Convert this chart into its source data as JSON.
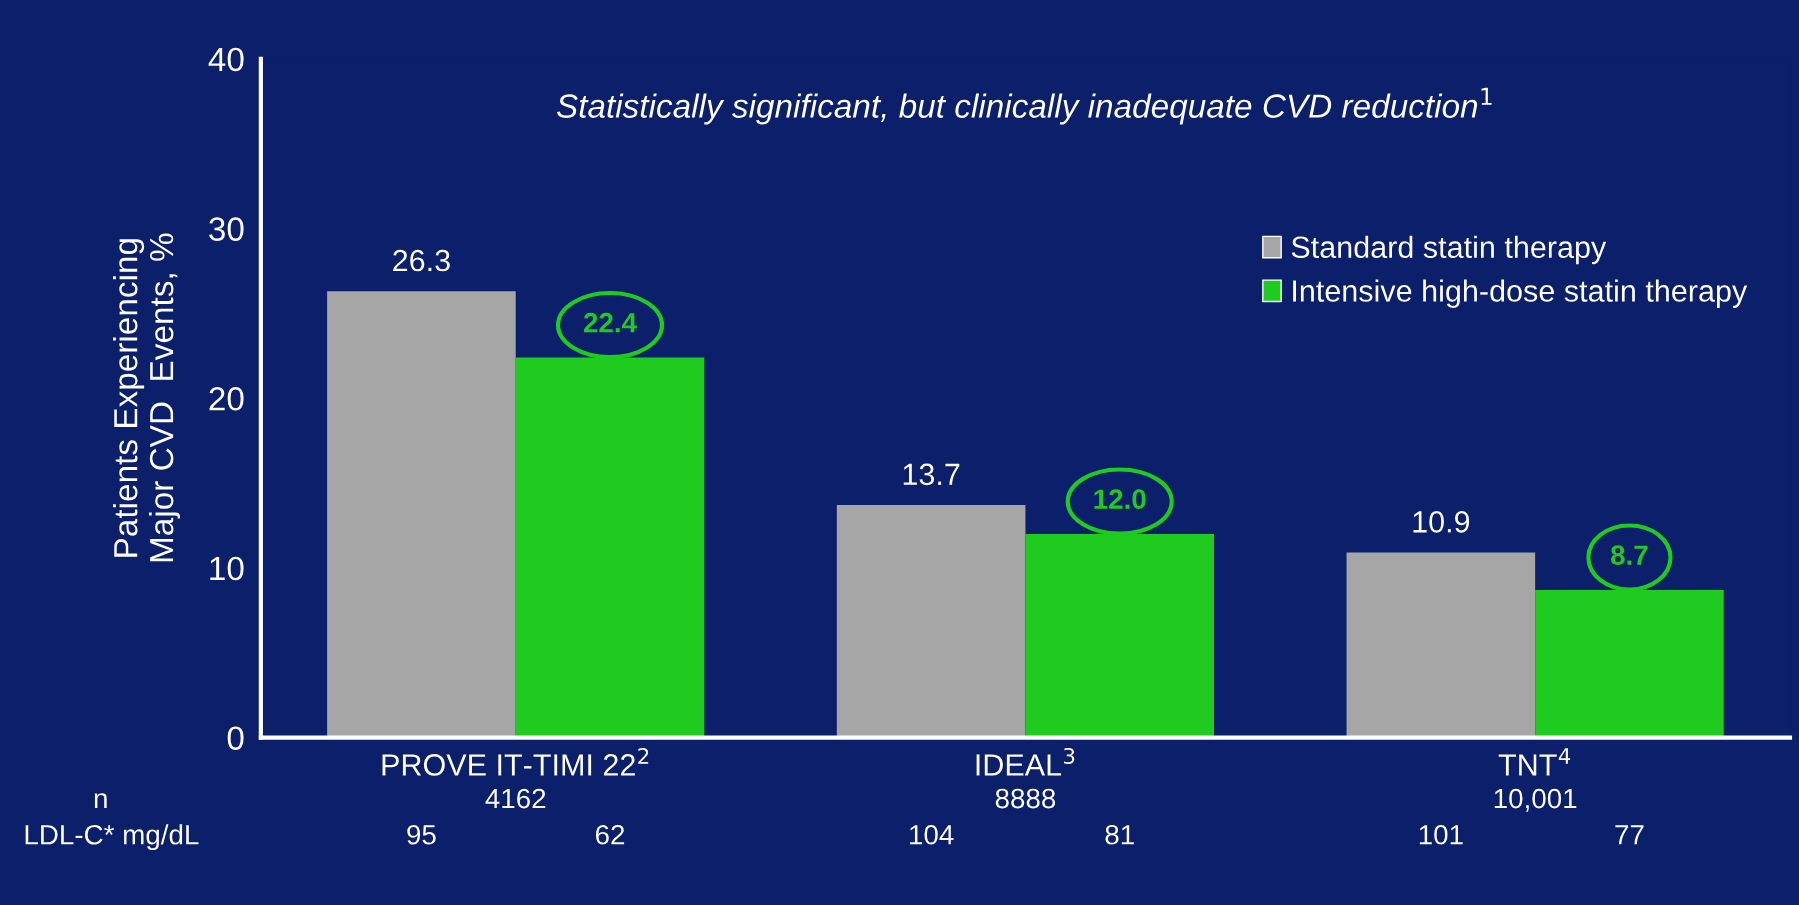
{
  "chart_data": {
    "type": "bar",
    "title": "Statistically significant, but clinically inadequate CVD reduction$^{1}$",
    "ylabel": "Patients Experiencing\nMajor CVD  Events, %",
    "categories": [
      "PROVE IT-TIMI 22$^{2}$",
      "IDEAL$^{3}$",
      "TNT$^{4}$"
    ],
    "series": [
      {
        "name": "Standard statin therapy",
        "color": "#a6a6a6",
        "values": [
          26.3,
          13.7,
          10.9
        ],
        "value_labels": [
          "26.3",
          "13.7",
          "10.9"
        ]
      },
      {
        "name": "Intensive high-dose statin therapy",
        "color": "#1ecb1e",
        "values": [
          22.4,
          12.0,
          8.7
        ],
        "value_labels": [
          "22.4",
          "12.0",
          "8.7"
        ]
      }
    ],
    "ylim": [
      0,
      40
    ],
    "yticks": [
      0,
      10,
      20,
      30,
      40
    ],
    "grid": false,
    "legend": "top right",
    "annotations": [
      "n",
      "4162",
      "8888",
      "10,001",
      "LDL-C* mg/dL",
      "95",
      "62",
      "104",
      "81",
      "101",
      "77"
    ]
  }
}
